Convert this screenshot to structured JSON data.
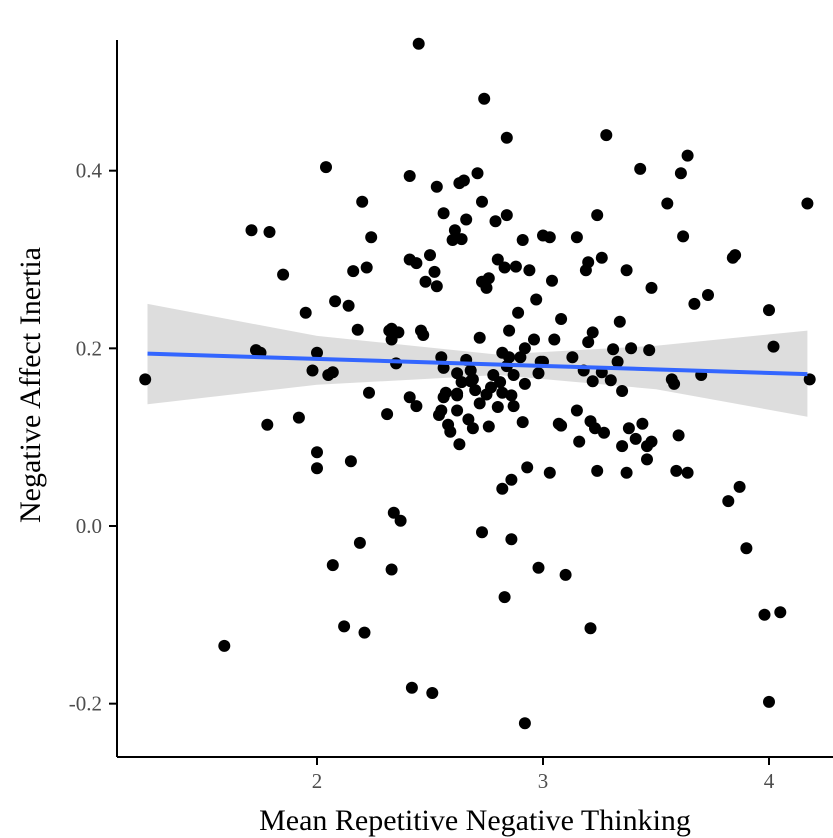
{
  "chart_data": {
    "type": "scatter",
    "title": "",
    "xlabel": "Mean Repetitive Negative Thinking",
    "ylabel": "Negative Affect Inertia",
    "xlim": [
      1.2,
      4.25
    ],
    "ylim": [
      -0.255,
      0.575
    ],
    "x_ticks": [
      2,
      3,
      4
    ],
    "y_ticks": [
      -0.2,
      0.0,
      0.2,
      0.4
    ],
    "x_tick_labels": [
      "2",
      "3",
      "4"
    ],
    "y_tick_labels": [
      "-0.2",
      "0.0",
      "0.2",
      "0.4"
    ],
    "grid": false,
    "legend": "none",
    "colors": {
      "points": "#000000",
      "fit_line": "#3366ff",
      "ribbon": "#d9d9d9"
    },
    "fit": {
      "method": "linear",
      "points": [
        [
          1.25,
          0.194
        ],
        [
          4.17,
          0.171
        ]
      ],
      "ci_upper": [
        [
          1.25,
          0.25
        ],
        [
          2.0,
          0.214
        ],
        [
          2.8,
          0.193
        ],
        [
          3.5,
          0.203
        ],
        [
          4.17,
          0.22
        ]
      ],
      "ci_lower": [
        [
          1.25,
          0.137
        ],
        [
          2.0,
          0.159
        ],
        [
          2.8,
          0.17
        ],
        [
          3.5,
          0.154
        ],
        [
          4.17,
          0.123
        ]
      ]
    },
    "series": [
      {
        "points": [
          [
            1.24,
            0.165
          ],
          [
            1.59,
            -0.135
          ],
          [
            1.71,
            0.333
          ],
          [
            1.73,
            0.198
          ],
          [
            1.75,
            0.195
          ],
          [
            1.78,
            0.114
          ],
          [
            1.79,
            0.331
          ],
          [
            1.85,
            0.283
          ],
          [
            1.92,
            0.122
          ],
          [
            1.95,
            0.24
          ],
          [
            1.98,
            0.175
          ],
          [
            2.0,
            0.195
          ],
          [
            2.0,
            0.083
          ],
          [
            2.0,
            0.065
          ],
          [
            2.04,
            0.404
          ],
          [
            2.05,
            0.17
          ],
          [
            2.07,
            0.173
          ],
          [
            2.07,
            -0.044
          ],
          [
            2.08,
            0.253
          ],
          [
            2.12,
            -0.113
          ],
          [
            2.14,
            0.248
          ],
          [
            2.15,
            0.073
          ],
          [
            2.16,
            0.287
          ],
          [
            2.18,
            0.221
          ],
          [
            2.19,
            -0.019
          ],
          [
            2.2,
            0.365
          ],
          [
            2.21,
            -0.12
          ],
          [
            2.22,
            0.291
          ],
          [
            2.23,
            0.15
          ],
          [
            2.24,
            0.325
          ],
          [
            2.31,
            0.126
          ],
          [
            2.32,
            0.22
          ],
          [
            2.33,
            0.222
          ],
          [
            2.33,
            0.21
          ],
          [
            2.33,
            -0.049
          ],
          [
            2.34,
            0.015
          ],
          [
            2.35,
            0.183
          ],
          [
            2.36,
            0.218
          ],
          [
            2.37,
            0.006
          ],
          [
            2.41,
            0.145
          ],
          [
            2.41,
            0.3
          ],
          [
            2.41,
            0.394
          ],
          [
            2.42,
            -0.182
          ],
          [
            2.44,
            0.296
          ],
          [
            2.44,
            0.135
          ],
          [
            2.45,
            0.543
          ],
          [
            2.46,
            0.22
          ],
          [
            2.47,
            0.215
          ],
          [
            2.48,
            0.275
          ],
          [
            2.5,
            0.305
          ],
          [
            2.51,
            -0.188
          ],
          [
            2.52,
            0.286
          ],
          [
            2.53,
            0.382
          ],
          [
            2.53,
            0.27
          ],
          [
            2.54,
            0.125
          ],
          [
            2.55,
            0.13
          ],
          [
            2.55,
            0.19
          ],
          [
            2.56,
            0.178
          ],
          [
            2.56,
            0.145
          ],
          [
            2.56,
            0.352
          ],
          [
            2.57,
            0.15
          ],
          [
            2.58,
            0.114
          ],
          [
            2.59,
            0.106
          ],
          [
            2.6,
            0.322
          ],
          [
            2.61,
            0.333
          ],
          [
            2.62,
            0.172
          ],
          [
            2.62,
            0.149
          ],
          [
            2.62,
            0.147
          ],
          [
            2.62,
            0.13
          ],
          [
            2.63,
            0.092
          ],
          [
            2.63,
            0.386
          ],
          [
            2.64,
            0.323
          ],
          [
            2.64,
            0.162
          ],
          [
            2.65,
            0.389
          ],
          [
            2.66,
            0.345
          ],
          [
            2.66,
            0.187
          ],
          [
            2.67,
            0.12
          ],
          [
            2.68,
            0.163
          ],
          [
            2.68,
            0.175
          ],
          [
            2.69,
            0.165
          ],
          [
            2.69,
            0.11
          ],
          [
            2.7,
            0.153
          ],
          [
            2.71,
            0.397
          ],
          [
            2.72,
            0.138
          ],
          [
            2.72,
            0.212
          ],
          [
            2.73,
            0.365
          ],
          [
            2.73,
            0.275
          ],
          [
            2.73,
            -0.007
          ],
          [
            2.74,
            0.481
          ],
          [
            2.75,
            0.268
          ],
          [
            2.75,
            0.148
          ],
          [
            2.76,
            0.279
          ],
          [
            2.76,
            0.112
          ],
          [
            2.77,
            0.156
          ],
          [
            2.78,
            0.17
          ],
          [
            2.79,
            0.343
          ],
          [
            2.8,
            0.134
          ],
          [
            2.8,
            0.3
          ],
          [
            2.81,
            0.162
          ],
          [
            2.82,
            0.15
          ],
          [
            2.82,
            0.195
          ],
          [
            2.82,
            0.042
          ],
          [
            2.83,
            -0.08
          ],
          [
            2.83,
            0.291
          ],
          [
            2.84,
            0.35
          ],
          [
            2.84,
            0.437
          ],
          [
            2.84,
            0.18
          ],
          [
            2.85,
            0.22
          ],
          [
            2.85,
            0.19
          ],
          [
            2.86,
            0.147
          ],
          [
            2.86,
            0.052
          ],
          [
            2.86,
            -0.015
          ],
          [
            2.87,
            0.17
          ],
          [
            2.87,
            0.135
          ],
          [
            2.88,
            0.292
          ],
          [
            2.89,
            0.24
          ],
          [
            2.9,
            0.19
          ],
          [
            2.91,
            0.322
          ],
          [
            2.91,
            0.117
          ],
          [
            2.92,
            0.2
          ],
          [
            2.92,
            0.16
          ],
          [
            2.92,
            -0.222
          ],
          [
            2.93,
            0.066
          ],
          [
            2.94,
            0.288
          ],
          [
            2.96,
            0.21
          ],
          [
            2.97,
            0.255
          ],
          [
            2.98,
            0.172
          ],
          [
            2.98,
            -0.047
          ],
          [
            2.99,
            0.185
          ],
          [
            3.0,
            0.185
          ],
          [
            3.0,
            0.327
          ],
          [
            3.03,
            0.325
          ],
          [
            3.03,
            0.06
          ],
          [
            3.04,
            0.276
          ],
          [
            3.05,
            0.21
          ],
          [
            3.07,
            0.115
          ],
          [
            3.08,
            0.233
          ],
          [
            3.08,
            0.113
          ],
          [
            3.1,
            -0.055
          ],
          [
            3.13,
            0.19
          ],
          [
            3.15,
            0.325
          ],
          [
            3.15,
            0.13
          ],
          [
            3.16,
            0.095
          ],
          [
            3.18,
            0.175
          ],
          [
            3.19,
            0.288
          ],
          [
            3.2,
            0.297
          ],
          [
            3.2,
            0.207
          ],
          [
            3.21,
            0.118
          ],
          [
            3.21,
            -0.115
          ],
          [
            3.22,
            0.218
          ],
          [
            3.22,
            0.163
          ],
          [
            3.23,
            0.11
          ],
          [
            3.24,
            0.062
          ],
          [
            3.24,
            0.35
          ],
          [
            3.26,
            0.302
          ],
          [
            3.26,
            0.173
          ],
          [
            3.27,
            0.105
          ],
          [
            3.28,
            0.44
          ],
          [
            3.3,
            0.164
          ],
          [
            3.31,
            0.199
          ],
          [
            3.33,
            0.185
          ],
          [
            3.34,
            0.23
          ],
          [
            3.35,
            0.152
          ],
          [
            3.35,
            0.09
          ],
          [
            3.37,
            0.06
          ],
          [
            3.37,
            0.288
          ],
          [
            3.38,
            0.11
          ],
          [
            3.39,
            0.2
          ],
          [
            3.41,
            0.098
          ],
          [
            3.43,
            0.402
          ],
          [
            3.44,
            0.115
          ],
          [
            3.46,
            0.09
          ],
          [
            3.46,
            0.075
          ],
          [
            3.47,
            0.198
          ],
          [
            3.48,
            0.268
          ],
          [
            3.48,
            0.095
          ],
          [
            3.55,
            0.363
          ],
          [
            3.57,
            0.165
          ],
          [
            3.58,
            0.16
          ],
          [
            3.59,
            0.062
          ],
          [
            3.6,
            0.102
          ],
          [
            3.61,
            0.397
          ],
          [
            3.62,
            0.326
          ],
          [
            3.64,
            0.417
          ],
          [
            3.64,
            0.06
          ],
          [
            3.67,
            0.25
          ],
          [
            3.7,
            0.17
          ],
          [
            3.73,
            0.26
          ],
          [
            3.82,
            0.028
          ],
          [
            3.84,
            0.302
          ],
          [
            3.85,
            0.305
          ],
          [
            3.87,
            0.044
          ],
          [
            3.9,
            -0.025
          ],
          [
            3.98,
            -0.1
          ],
          [
            4.0,
            -0.198
          ],
          [
            4.0,
            0.243
          ],
          [
            4.02,
            0.202
          ],
          [
            4.05,
            -0.097
          ],
          [
            4.17,
            0.363
          ],
          [
            4.18,
            0.165
          ]
        ]
      }
    ]
  }
}
